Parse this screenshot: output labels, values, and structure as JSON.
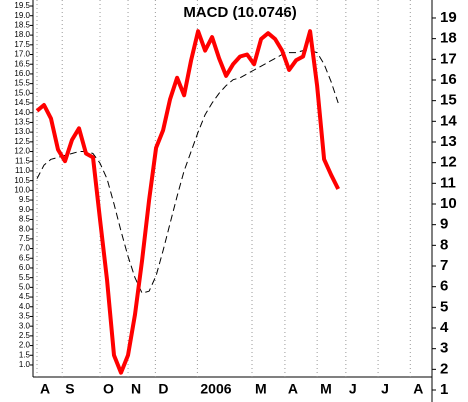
{
  "chart_data": {
    "type": "line",
    "title": "MACD (10.0746)",
    "x": [
      0,
      1,
      2,
      3,
      4,
      5,
      6,
      7,
      8,
      9,
      10,
      11,
      12,
      13,
      14,
      15,
      16,
      17,
      18,
      19,
      20,
      21,
      22,
      23,
      24,
      25,
      26,
      27,
      28,
      29,
      30,
      31,
      32,
      33,
      34,
      35,
      36,
      37,
      38,
      39,
      40,
      41,
      42,
      43
    ],
    "xlim": [
      0,
      56.4
    ],
    "xticks": [
      {
        "value": 0,
        "label": "A"
      },
      {
        "value": 3.6,
        "label": "S"
      },
      {
        "value": 9,
        "label": "O"
      },
      {
        "value": 13,
        "label": "N"
      },
      {
        "value": 16.9,
        "label": "D"
      },
      {
        "value": 22.9,
        "label": "2006"
      },
      {
        "value": 30.7,
        "label": "M"
      },
      {
        "value": 35.4,
        "label": "A"
      },
      {
        "value": 40,
        "label": "M"
      },
      {
        "value": 44.1,
        "label": "J"
      },
      {
        "value": 48.7,
        "label": "J"
      },
      {
        "value": 53.3,
        "label": "A"
      }
    ],
    "series": [
      {
        "color": "#ff0000",
        "values": [
          14.1,
          14.4,
          13.7,
          12.1,
          11.5,
          12.6,
          13.2,
          11.9,
          11.7,
          8.5,
          5.4,
          1.5,
          0.6,
          1.5,
          3.6,
          6.4,
          9.5,
          12.2,
          13.1,
          14.7,
          15.8,
          14.9,
          16.7,
          18.2,
          17.2,
          17.9,
          16.8,
          15.9,
          16.5,
          16.9,
          17.0,
          16.5,
          17.8,
          18.1,
          17.8,
          17.2,
          16.2,
          16.7,
          16.9,
          18.2,
          15.4,
          11.6,
          10.8,
          10.07
        ]
      },
      {
        "color": "#000000",
        "dashed": true,
        "values": [
          10.6,
          11.3,
          11.6,
          11.7,
          11.8,
          11.9,
          12.0,
          12.0,
          11.9,
          11.4,
          10.6,
          9.3,
          7.9,
          6.6,
          5.5,
          4.7,
          4.8,
          5.6,
          6.9,
          8.3,
          9.7,
          11.0,
          12.0,
          13.0,
          13.9,
          14.5,
          15.0,
          15.4,
          15.7,
          15.8,
          16.0,
          16.2,
          16.4,
          16.6,
          16.8,
          17.0,
          17.1,
          17.1,
          17.2,
          17.2,
          17.1,
          16.5,
          15.6,
          14.5
        ]
      }
    ],
    "ylim": [
      0.38,
      19.81
    ],
    "yticks": [
      {
        "value": 1,
        "label": "1.0"
      },
      1.5,
      {
        "value": 2,
        "label": "2.0"
      },
      2.5,
      {
        "value": 3,
        "label": "3.0"
      },
      3.5,
      {
        "value": 4,
        "label": "4.0"
      },
      4.5,
      {
        "value": 5,
        "label": "5.0"
      },
      5.5,
      {
        "value": 6,
        "label": "6.0"
      },
      6.5,
      {
        "value": 7,
        "label": "7.0"
      },
      7.5,
      {
        "value": 8,
        "label": "8.0"
      },
      8.5,
      {
        "value": 9,
        "label": "9.0"
      },
      9.5,
      {
        "value": 10,
        "label": "10.0"
      },
      10.5,
      {
        "value": 11,
        "label": "11.0"
      },
      11.5,
      {
        "value": 12,
        "label": "12.0"
      },
      12.5,
      {
        "value": 13,
        "label": "13.0"
      },
      13.5,
      {
        "value": 14,
        "label": "14.0"
      },
      14.5,
      {
        "value": 15,
        "label": "15.0"
      },
      15.5,
      {
        "value": 16,
        "label": "16.0"
      },
      16.5,
      {
        "value": 17,
        "label": "17.0"
      },
      17.5,
      {
        "value": 18,
        "label": "18.0"
      },
      18.5,
      {
        "value": 19,
        "label": "19.0"
      },
      19.5
    ],
    "y2lim": [
      0.42,
      19.87
    ],
    "y2ticks": [
      1,
      2,
      3,
      4,
      5,
      6,
      7,
      8,
      9,
      10,
      11,
      12,
      13,
      14,
      15,
      16,
      17,
      18,
      19
    ]
  }
}
